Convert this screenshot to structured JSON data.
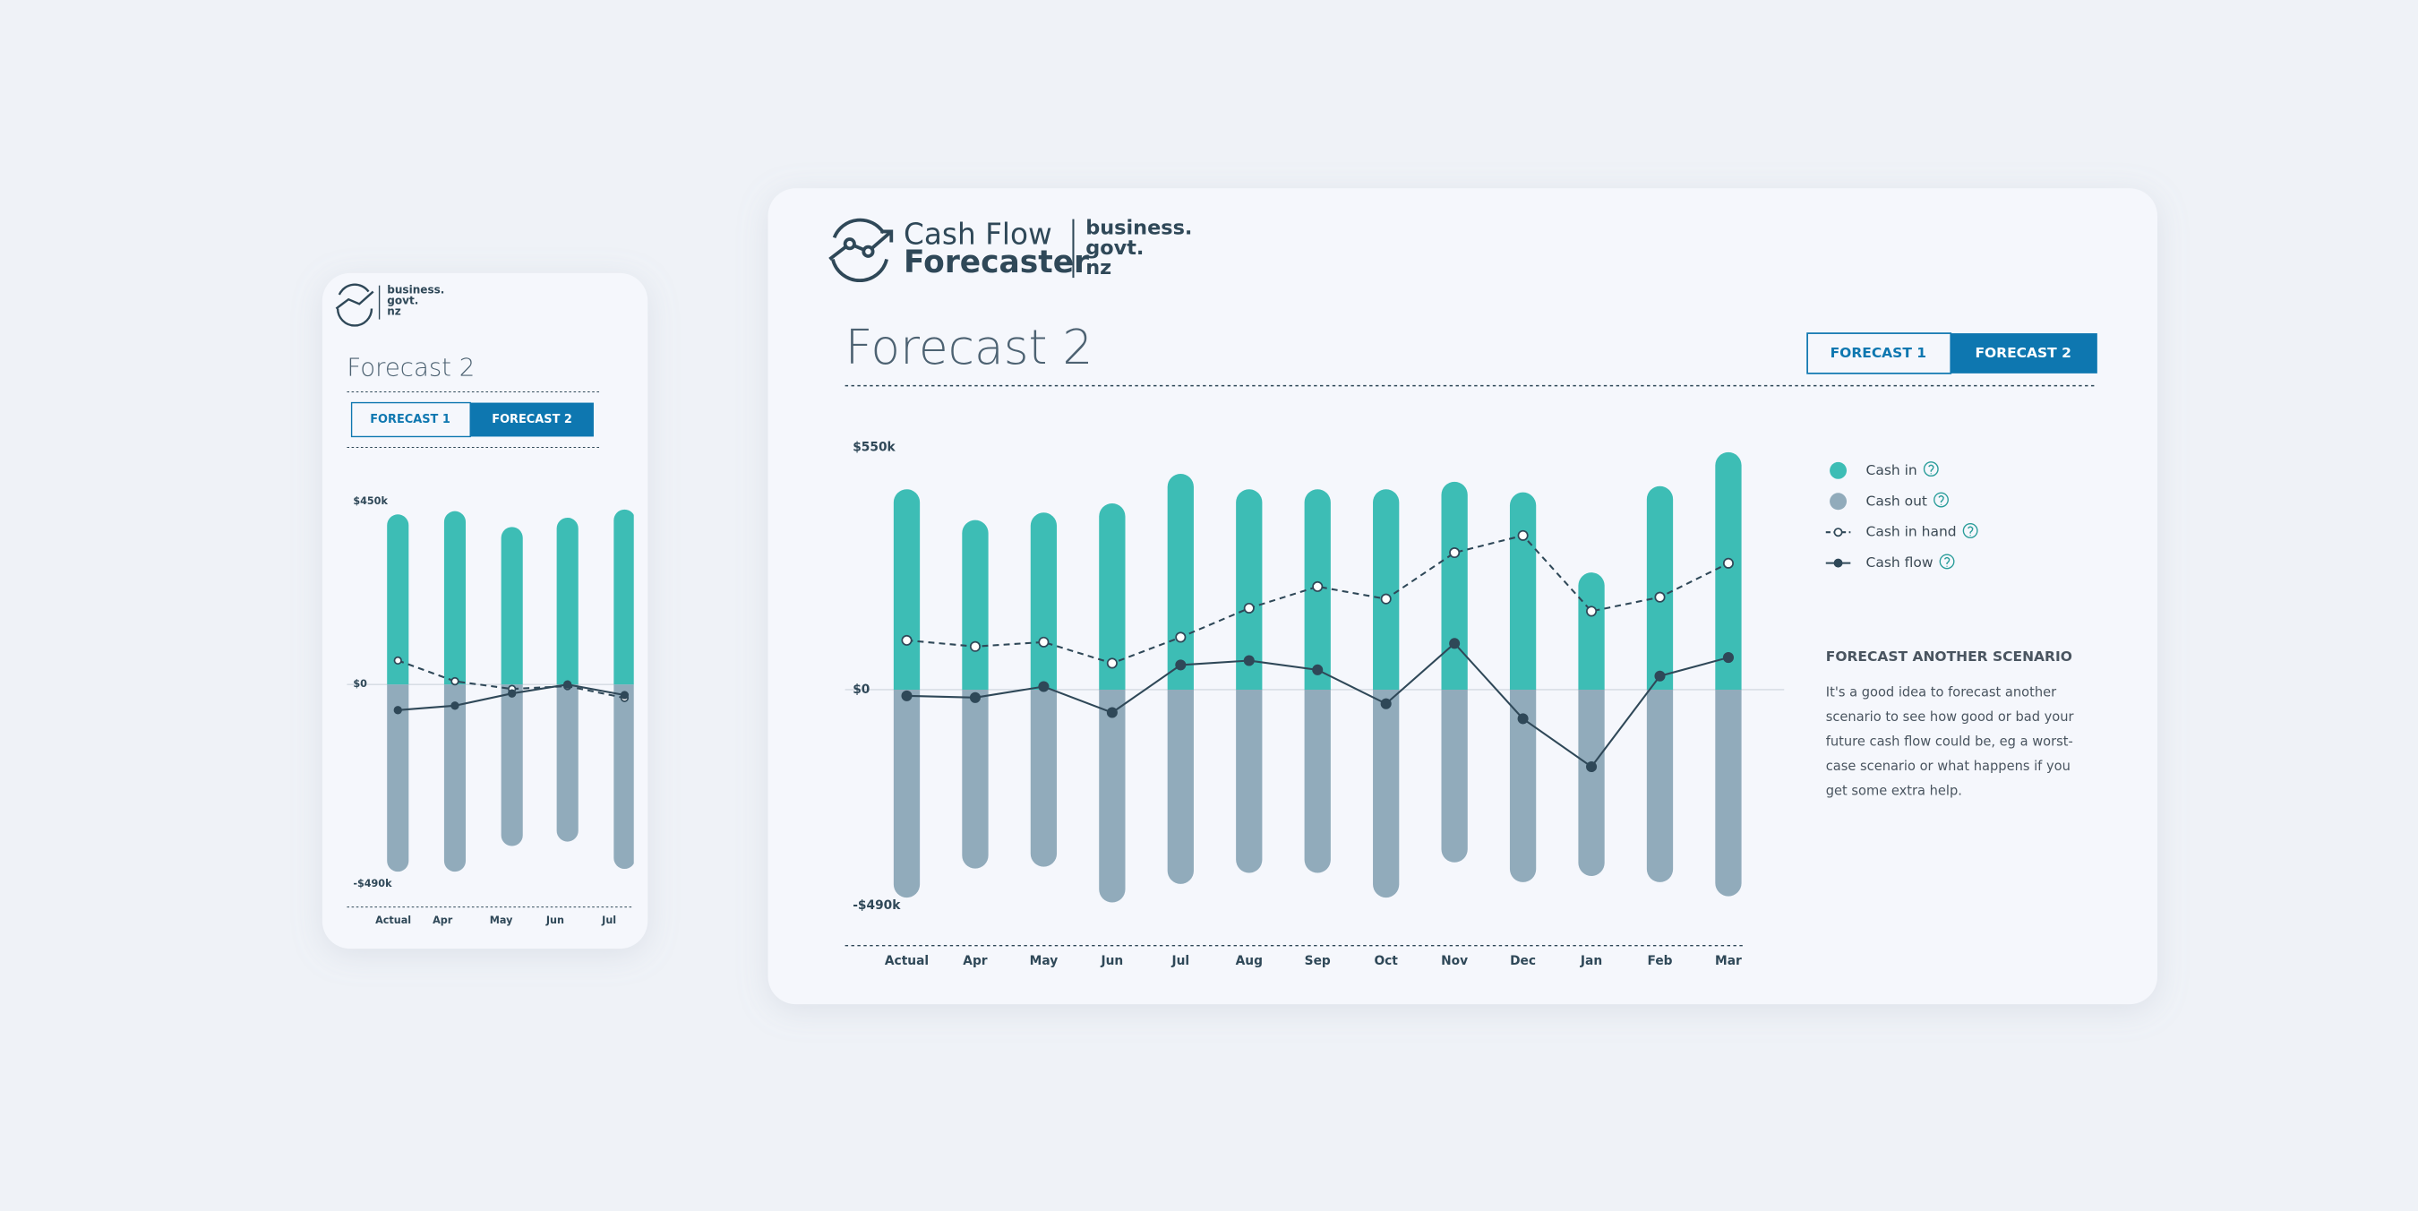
{
  "logo": {
    "line1": "Cash Flow",
    "line2": "Forecaster",
    "brand": [
      "business.",
      "govt.",
      "nz"
    ]
  },
  "desktop": {
    "title": "Forecast 2",
    "tabs": [
      "FORECAST 1",
      "FORECAST 2"
    ],
    "sidebar": {
      "heading": "FORECAST ANOTHER SCENARIO",
      "lines": [
        "It's a good idea to forecast another",
        "scenario to see how good or bad your",
        "future cash flow could be, eg a worst-",
        "case scenario or what happens if you",
        "get some extra help."
      ]
    }
  },
  "mobile": {
    "brand": [
      "business.",
      "govt.",
      "nz"
    ],
    "title": "Forecast 2",
    "tabs": [
      "FORECAST 1",
      "FORECAST 2"
    ]
  },
  "chart_data": [
    {
      "type": "bar",
      "legend": "right",
      "categories": [
        "Actual",
        "Apr",
        "May",
        "Jun",
        "Jul",
        "Aug",
        "Sep",
        "Oct",
        "Nov",
        "Dec",
        "Jan",
        "Feb",
        "Mar"
      ],
      "ylim": [
        -490,
        550
      ],
      "yticks": [
        {
          "value": 550,
          "label": "$550k"
        },
        {
          "value": 0,
          "label": "$0"
        },
        {
          "value": -490,
          "label": "-$490k"
        }
      ],
      "series": [
        {
          "name": "Cash in",
          "type": "bar",
          "color": "#3dbdb5",
          "values": [
            455,
            385,
            402,
            423,
            490,
            455,
            455,
            455,
            472,
            448,
            266,
            462,
            539
          ]
        },
        {
          "name": "Cash out",
          "type": "bar",
          "color": "#91abbb",
          "values": [
            -472,
            -406,
            -402,
            -483,
            -441,
            -416,
            -416,
            -472,
            -392,
            -437,
            -423,
            -437,
            -469
          ]
        },
        {
          "name": "Cash in hand",
          "type": "line",
          "dashed": true,
          "color": "#2f4858",
          "values": [
            112,
            98,
            108,
            60,
            119,
            185,
            234,
            206,
            311,
            350,
            178,
            210,
            287
          ]
        },
        {
          "name": "Cash flow",
          "type": "line",
          "dashed": false,
          "color": "#2f4858",
          "values": [
            -14,
            -18,
            7,
            -52,
            56,
            66,
            45,
            -32,
            105,
            -66,
            -175,
            31,
            73
          ]
        }
      ]
    },
    {
      "type": "bar",
      "legend": false,
      "categories": [
        "Actual",
        "Apr",
        "May",
        "Jun",
        "Jul"
      ],
      "ylim": [
        -490,
        450
      ],
      "yticks": [
        {
          "value": 450,
          "label": "$450k"
        },
        {
          "value": 0,
          "label": "$0"
        },
        {
          "value": -490,
          "label": "-$490k"
        }
      ],
      "series": [
        {
          "type": "bar",
          "color": "#3dbdb5",
          "values": [
            418,
            426,
            387,
            410,
            430
          ]
        },
        {
          "type": "bar",
          "color": "#91abbb",
          "values": [
            -460,
            -460,
            -397,
            -386,
            -453
          ]
        },
        {
          "type": "line",
          "dashed": true,
          "color": "#2f4858",
          "values": [
            59,
            8,
            -11,
            -4,
            -33
          ]
        },
        {
          "type": "line",
          "dashed": false,
          "color": "#2f4858",
          "values": [
            -63,
            -52,
            -22,
            0,
            -26
          ]
        }
      ]
    }
  ]
}
